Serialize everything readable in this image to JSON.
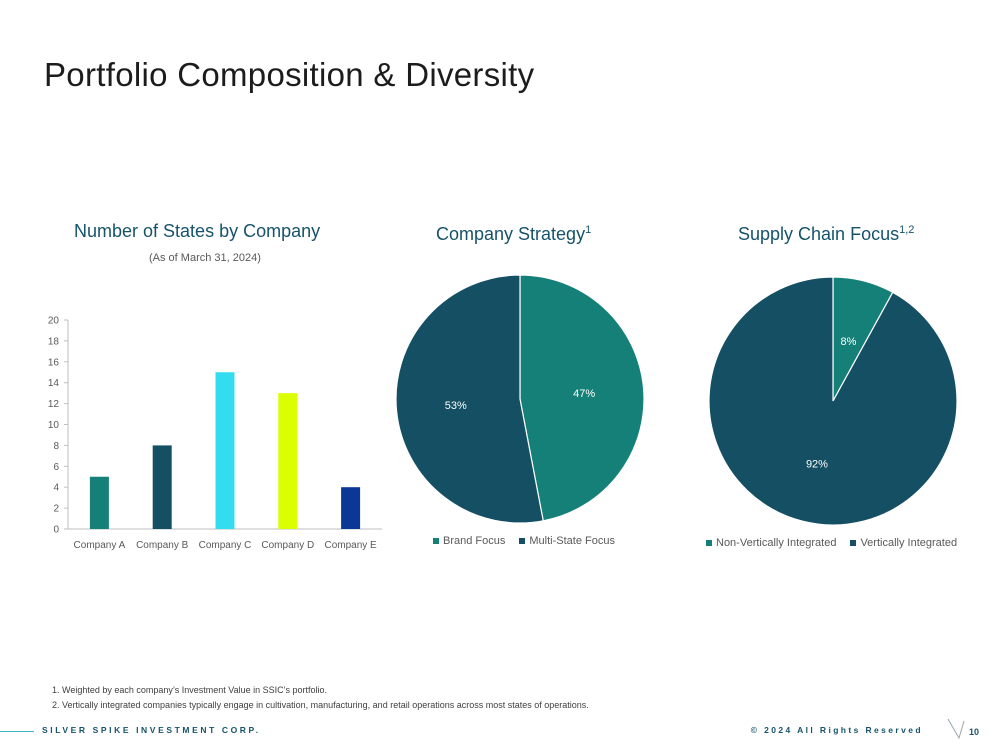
{
  "slide": {
    "title": "Portfolio Composition & Diversity",
    "page_number": "10"
  },
  "colors": {
    "teal": "#148078",
    "dark_teal": "#144f63",
    "cyan": "#33dcef",
    "lime": "#dcff00",
    "navy": "#0b3796",
    "title_blue": "#16536a"
  },
  "chart_data": [
    {
      "type": "bar",
      "title": "Number of States by Company",
      "subtitle": "(As of March 31, 2024)",
      "categories": [
        "Company A",
        "Company B",
        "Company C",
        "Company D",
        "Company E"
      ],
      "values": [
        5,
        8,
        15,
        13,
        4
      ],
      "bar_colors": [
        "#148078",
        "#144f63",
        "#33dcef",
        "#dcff00",
        "#0b3796"
      ],
      "ylim": [
        0,
        20
      ],
      "yticks": [
        "0",
        "2",
        "4",
        "6",
        "8",
        "10",
        "12",
        "14",
        "16",
        "18",
        "20"
      ],
      "xlabel": "",
      "ylabel": "",
      "grid": false
    },
    {
      "type": "pie",
      "title": "Company Strategy",
      "title_sup": "1",
      "labels": [
        "Brand Focus",
        "Multi-State Focus"
      ],
      "values": [
        47,
        53
      ],
      "value_labels": [
        "47%",
        "53%"
      ],
      "colors": [
        "#148078",
        "#144f63"
      ],
      "legend": "bottom"
    },
    {
      "type": "pie",
      "title": "Supply Chain Focus",
      "title_sup": "1,2",
      "labels": [
        "Non-Vertically Integrated",
        "Vertically Integrated"
      ],
      "values": [
        8,
        92
      ],
      "value_labels": [
        "8%",
        "92%"
      ],
      "colors": [
        "#148078",
        "#144f63"
      ],
      "legend": "bottom"
    }
  ],
  "footnotes": [
    "1.  Weighted by each company’s Investment Value in SSIC’s portfolio.",
    "2.  Vertically integrated companies typically engage in cultivation, manufacturing, and retail operations across most states of operations."
  ],
  "footer": {
    "company": "SILVER SPIKE INVESTMENT CORP.",
    "copyright": "© 2024 All Rights Reserved"
  }
}
